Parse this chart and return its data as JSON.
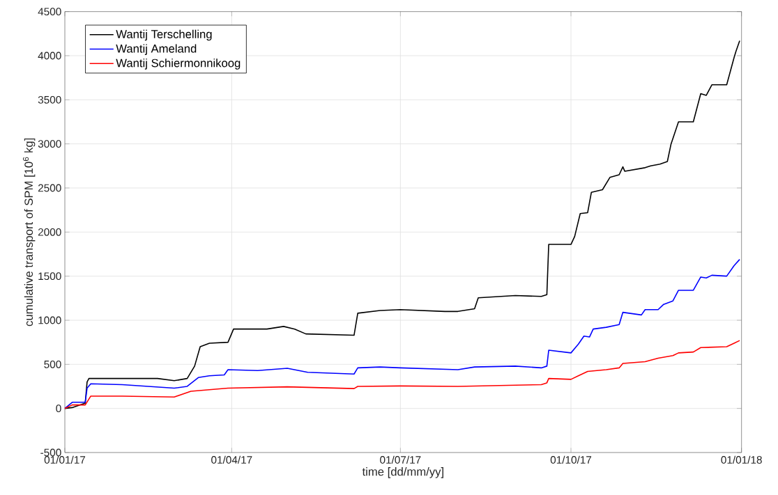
{
  "chart_data": {
    "type": "line",
    "xlabel": "time [dd/mm/yy]",
    "ylabel": "cumulative transport of SPM [10$^{6}$ kg]",
    "xlim": [
      "2017-01-01",
      "2018-01-01"
    ],
    "xticks": [
      {
        "value": "2017-01-01",
        "label": "01/01/17"
      },
      {
        "value": "2017-04-01",
        "label": "01/04/17"
      },
      {
        "value": "2017-07-01",
        "label": "01/07/17"
      },
      {
        "value": "2017-10-01",
        "label": "01/10/17"
      },
      {
        "value": "2018-01-01",
        "label": "01/01/18"
      }
    ],
    "ylim": [
      -500,
      4500
    ],
    "yticks": [
      -500,
      0,
      500,
      1000,
      1500,
      2000,
      2500,
      3000,
      3500,
      4000,
      4500
    ],
    "grid": true,
    "legend": "top left",
    "marker": "none",
    "line_style": "solid",
    "series": [
      {
        "name": "Wantij Terschelling",
        "color": "#000000",
        "x": [
          "2017-01-01",
          "2017-01-05",
          "2017-01-12",
          "2017-01-13",
          "2017-01-14",
          "2017-02-01",
          "2017-02-20",
          "2017-03-01",
          "2017-03-08",
          "2017-03-12",
          "2017-03-15",
          "2017-03-20",
          "2017-03-30",
          "2017-04-02",
          "2017-04-20",
          "2017-04-29",
          "2017-05-05",
          "2017-05-11",
          "2017-06-06",
          "2017-06-08",
          "2017-06-20",
          "2017-07-01",
          "2017-07-25",
          "2017-08-01",
          "2017-08-10",
          "2017-08-12",
          "2017-09-01",
          "2017-09-15",
          "2017-09-18",
          "2017-09-19",
          "2017-10-01",
          "2017-10-03",
          "2017-10-06",
          "2017-10-10",
          "2017-10-12",
          "2017-10-18",
          "2017-10-22",
          "2017-10-27",
          "2017-10-29",
          "2017-10-30",
          "2017-11-10",
          "2017-11-13",
          "2017-11-18",
          "2017-11-22",
          "2017-11-24",
          "2017-11-28",
          "2017-12-06",
          "2017-12-10",
          "2017-12-13",
          "2017-12-16",
          "2017-12-24",
          "2017-12-28",
          "2017-12-29",
          "2017-12-31"
        ],
        "values": [
          0,
          10,
          60,
          300,
          340,
          340,
          340,
          315,
          340,
          480,
          700,
          740,
          750,
          900,
          900,
          930,
          900,
          845,
          830,
          1080,
          1110,
          1120,
          1100,
          1100,
          1130,
          1255,
          1280,
          1270,
          1290,
          1860,
          1860,
          1950,
          2210,
          2220,
          2450,
          2480,
          2620,
          2650,
          2740,
          2690,
          2730,
          2750,
          2770,
          2800,
          3000,
          3250,
          3250,
          3570,
          3550,
          3670,
          3670,
          3980,
          4050,
          4170
        ]
      },
      {
        "name": "Wantij Ameland",
        "color": "#0000ff",
        "x": [
          "2017-01-01",
          "2017-01-05",
          "2017-01-12",
          "2017-01-13",
          "2017-01-15",
          "2017-02-01",
          "2017-03-01",
          "2017-03-08",
          "2017-03-14",
          "2017-03-20",
          "2017-03-28",
          "2017-03-30",
          "2017-04-15",
          "2017-05-01",
          "2017-05-12",
          "2017-06-06",
          "2017-06-08",
          "2017-06-20",
          "2017-07-01",
          "2017-08-01",
          "2017-08-10",
          "2017-09-01",
          "2017-09-15",
          "2017-09-18",
          "2017-09-19",
          "2017-10-01",
          "2017-10-05",
          "2017-10-08",
          "2017-10-11",
          "2017-10-13",
          "2017-10-20",
          "2017-10-27",
          "2017-10-29",
          "2017-11-08",
          "2017-11-10",
          "2017-11-17",
          "2017-11-20",
          "2017-11-25",
          "2017-11-28",
          "2017-12-06",
          "2017-12-10",
          "2017-12-13",
          "2017-12-16",
          "2017-12-24",
          "2017-12-28",
          "2017-12-31"
        ],
        "values": [
          0,
          70,
          70,
          230,
          280,
          270,
          230,
          250,
          350,
          370,
          380,
          440,
          430,
          455,
          410,
          390,
          460,
          470,
          460,
          440,
          470,
          480,
          460,
          480,
          660,
          630,
          730,
          820,
          810,
          900,
          920,
          950,
          1090,
          1060,
          1120,
          1120,
          1180,
          1220,
          1340,
          1340,
          1490,
          1480,
          1510,
          1500,
          1620,
          1690
        ]
      },
      {
        "name": "Wantij Schiermonnikoog",
        "color": "#ff0000",
        "x": [
          "2017-01-01",
          "2017-01-05",
          "2017-01-12",
          "2017-01-15",
          "2017-02-01",
          "2017-03-01",
          "2017-03-10",
          "2017-03-30",
          "2017-05-01",
          "2017-06-06",
          "2017-06-08",
          "2017-07-01",
          "2017-08-01",
          "2017-09-15",
          "2017-09-18",
          "2017-09-19",
          "2017-10-01",
          "2017-10-05",
          "2017-10-10",
          "2017-10-20",
          "2017-10-27",
          "2017-10-29",
          "2017-11-10",
          "2017-11-17",
          "2017-11-25",
          "2017-11-28",
          "2017-12-06",
          "2017-12-10",
          "2017-12-24",
          "2017-12-28",
          "2017-12-31"
        ],
        "values": [
          0,
          40,
          40,
          140,
          140,
          130,
          195,
          230,
          245,
          225,
          250,
          255,
          250,
          270,
          290,
          340,
          330,
          370,
          420,
          440,
          460,
          510,
          530,
          570,
          600,
          630,
          640,
          690,
          700,
          740,
          770
        ]
      }
    ]
  }
}
